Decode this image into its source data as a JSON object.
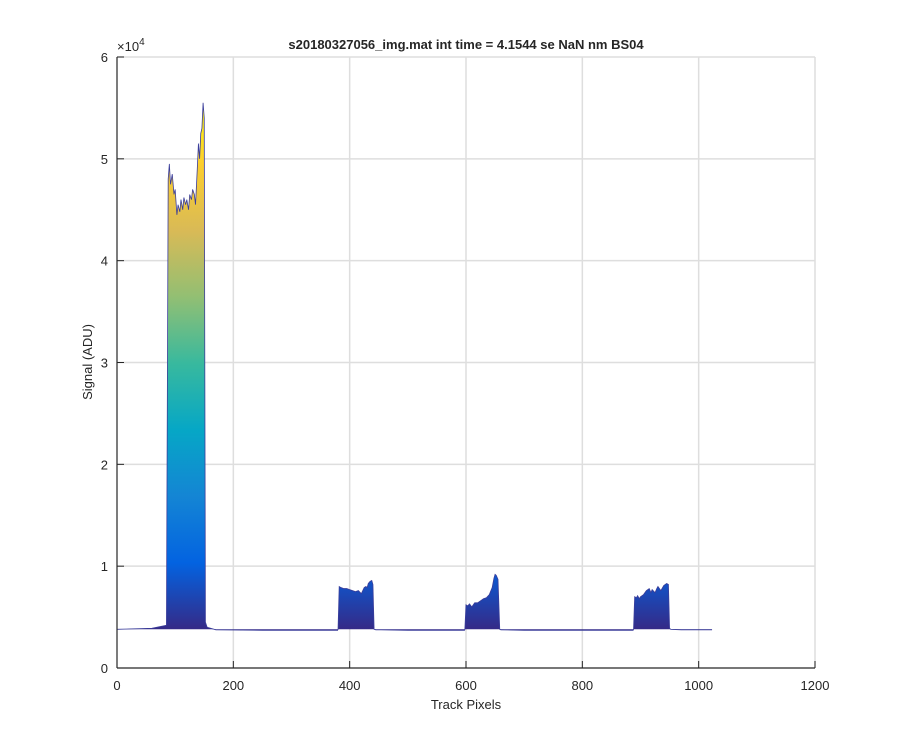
{
  "chart_data": {
    "type": "area",
    "title": "s20180327056_img.mat int time = 4.1544 se  NaN nm BS04",
    "xlabel": "Track Pixels",
    "ylabel": "Signal (ADU)",
    "y_exponent_label": "×10",
    "y_exponent_power": "4",
    "xlim": [
      0,
      1200
    ],
    "ylim": [
      0,
      60000
    ],
    "x_ticks": [
      0,
      200,
      400,
      600,
      800,
      1000,
      1200
    ],
    "y_ticks": [
      0,
      10000,
      20000,
      30000,
      40000,
      50000,
      60000
    ],
    "x_tick_labels": [
      "0",
      "200",
      "400",
      "600",
      "800",
      "1000",
      "1200"
    ],
    "y_tick_labels": [
      "0",
      "1",
      "2",
      "3",
      "4",
      "5",
      "6"
    ],
    "grid": true,
    "colormap": [
      "#352a87",
      "#0363e1",
      "#1485d4",
      "#06a7c6",
      "#38b99e",
      "#92bf73",
      "#d9ba56",
      "#fcce2e",
      "#f9fb0e"
    ],
    "baseline": 3800,
    "series": [
      {
        "x": [
          0,
          60,
          85,
          88,
          90,
          92,
          95,
          98,
          100,
          103,
          105,
          108,
          110,
          113,
          115,
          118,
          120,
          123,
          125,
          128,
          130,
          133,
          135,
          138,
          140,
          142,
          144,
          146,
          148,
          150,
          152,
          155,
          170,
          250,
          380
        ],
        "y": [
          3800,
          3900,
          4200,
          48000,
          49500,
          47500,
          48500,
          46500,
          47000,
          44500,
          45500,
          44800,
          46000,
          45000,
          46200,
          45500,
          46000,
          45000,
          46500,
          46000,
          47000,
          46500,
          45500,
          49000,
          51500,
          50000,
          52500,
          53000,
          55500,
          54000,
          4500,
          4000,
          3750,
          3700,
          3700
        ]
      },
      {
        "x": [
          380,
          382,
          385,
          390,
          395,
          400,
          405,
          410,
          415,
          420,
          425,
          428,
          430,
          432,
          435,
          438,
          440,
          442,
          445,
          500,
          598
        ],
        "y": [
          3750,
          8000,
          7900,
          7800,
          7800,
          7700,
          7600,
          7500,
          7600,
          7300,
          7900,
          8000,
          7900,
          8300,
          8500,
          8600,
          8200,
          3800,
          3750,
          3700,
          3700
        ]
      },
      {
        "x": [
          598,
          600,
          603,
          606,
          610,
          615,
          620,
          625,
          630,
          635,
          640,
          645,
          648,
          650,
          652,
          655,
          658,
          660,
          700,
          888
        ],
        "y": [
          3750,
          6200,
          6100,
          6300,
          6000,
          6400,
          6400,
          6600,
          6800,
          6900,
          7200,
          7900,
          8800,
          9200,
          9100,
          8700,
          3800,
          3750,
          3700,
          3700
        ]
      },
      {
        "x": [
          888,
          890,
          893,
          895,
          898,
          900,
          905,
          910,
          915,
          918,
          920,
          925,
          928,
          930,
          935,
          940,
          945,
          948,
          950,
          952,
          970,
          1000,
          1023
        ],
        "y": [
          3750,
          7000,
          6900,
          7100,
          6800,
          7000,
          7200,
          7600,
          7800,
          7400,
          7700,
          7400,
          7800,
          8000,
          7600,
          8100,
          8300,
          8200,
          3900,
          3800,
          3750,
          3750,
          3750
        ]
      }
    ]
  }
}
